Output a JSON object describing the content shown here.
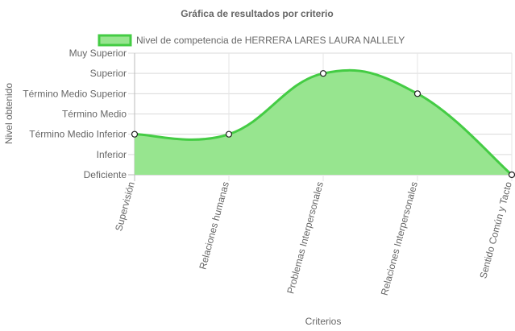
{
  "chart_data": {
    "type": "area",
    "title": "Gráfica de resultados por criterio",
    "xlabel": "Criterios",
    "ylabel": "Nivel obtenido",
    "y_levels": [
      "Deficiente",
      "Inferior",
      "Término Medio Inferior",
      "Término Medio",
      "Término Medio Superior",
      "Superior",
      "Muy Superior"
    ],
    "ylim": [
      0,
      6
    ],
    "categories": [
      "Supervisión",
      "Relaciones humanas",
      "Problemas Interpersonales",
      "Relaciones Interpersonales",
      "Sentido Común y Tacto"
    ],
    "series": [
      {
        "name": "Nivel de competencia de HERRERA LARES LAURA NALLELY",
        "values": [
          2,
          2,
          5,
          4,
          0
        ],
        "line_color": "#44cc44",
        "fill_color": "#97e58f"
      }
    ],
    "grid": true,
    "legend_position": "top"
  }
}
